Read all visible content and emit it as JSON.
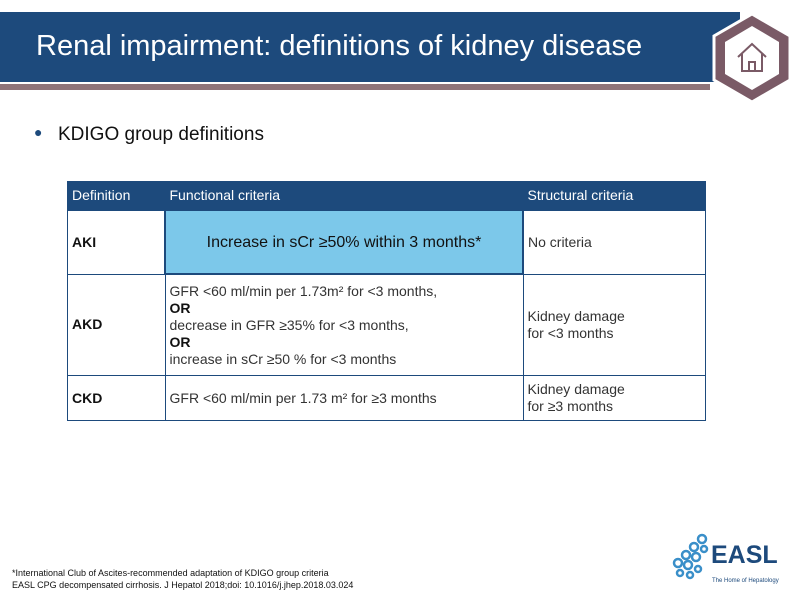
{
  "slide": {
    "title": "Renal impairment: definitions of kidney disease",
    "home_icon": "home-icon",
    "bullet": "KDIGO group definitions"
  },
  "table": {
    "headers": [
      "Definition",
      "Functional criteria",
      "Structural criteria"
    ],
    "rows": [
      {
        "definition": "AKI",
        "functional": [
          "Increase in sCr ≥50% within 3 months*"
        ],
        "structural": [
          "No criteria"
        ]
      },
      {
        "definition": "AKD",
        "functional": [
          "GFR <60 ml/min per 1.73m² for <3 months,",
          "OR",
          "decrease in GFR ≥35% for <3 months,",
          "OR",
          "increase in sCr ≥50 % for <3 months"
        ],
        "structural": [
          "Kidney damage",
          "for <3 months"
        ]
      },
      {
        "definition": "CKD",
        "functional": [
          "GFR <60 ml/min per 1.73 m² for ≥3 months"
        ],
        "structural": [
          "Kidney damage",
          "for ≥3 months"
        ]
      }
    ]
  },
  "footnote": {
    "line1": "*International Club of Ascites-recommended adaptation of KDIGO group criteria",
    "line2": "EASL CPG decompensated cirrhosis. J Hepatol 2018;doi: 10.1016/j.jhep.2018.03.024"
  },
  "logo": {
    "name": "EASL",
    "tagline": "The Home of Hepatology"
  },
  "colors": {
    "primary": "#1d4a7c",
    "accent_bar": "#8f7479",
    "highlight": "#7cc8ea",
    "hexagon": "#7a5a66"
  }
}
